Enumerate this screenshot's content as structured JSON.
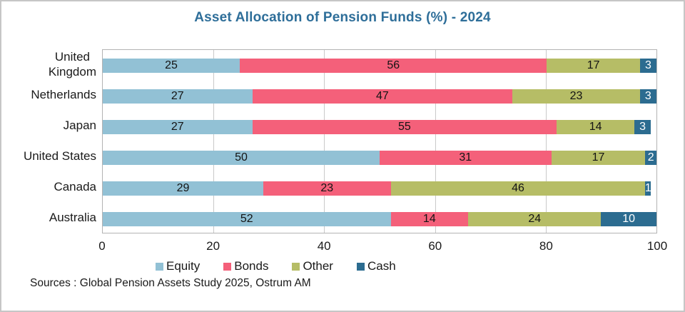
{
  "title": "Asset Allocation of Pension Funds (%) - 2024",
  "title_color": "#2E6E99",
  "source": "Sources : Global Pension Assets Study 2025, Ostrum AM",
  "chart_data": {
    "type": "bar",
    "orientation": "horizontal",
    "stacked": true,
    "title": "Asset Allocation of Pension Funds (%) - 2024",
    "categories": [
      "United\nKingdom",
      "Netherlands",
      "Japan",
      "United States",
      "Canada",
      "Australia"
    ],
    "series": [
      {
        "name": "Equity",
        "color": "#92C1D5",
        "label_color": "#141414",
        "values": [
          25,
          27,
          27,
          50,
          29,
          52
        ]
      },
      {
        "name": "Bonds",
        "color": "#F4607A",
        "label_color": "#141414",
        "values": [
          56,
          47,
          55,
          31,
          23,
          14
        ]
      },
      {
        "name": "Other",
        "color": "#B6BD66",
        "label_color": "#141414",
        "values": [
          17,
          23,
          14,
          17,
          46,
          24
        ]
      },
      {
        "name": "Cash",
        "color": "#2C6C90",
        "label_color": "#FFFFFF",
        "values": [
          3,
          3,
          3,
          2,
          1,
          10
        ]
      }
    ],
    "xlabel": "",
    "ylabel": "",
    "xlim": [
      0,
      100
    ],
    "xticks": [
      0,
      20,
      40,
      60,
      80,
      100
    ],
    "grid": true,
    "legend_position": "bottom",
    "annotation": "Sources : Global Pension Assets Study 2025, Ostrum AM"
  }
}
